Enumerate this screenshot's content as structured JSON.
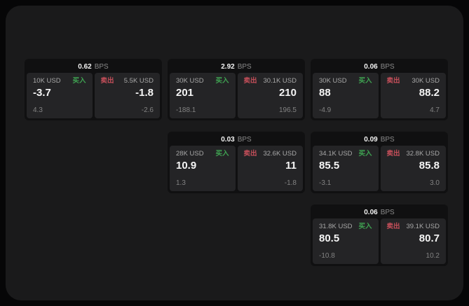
{
  "colors": {
    "page_background": "#060607",
    "panel_background": "#1a1a1b",
    "card_background": "#101011",
    "tile_background": "#242426",
    "buy_green": "#3fa352",
    "sell_red": "#c64f5a",
    "value_white": "#f5f5f5",
    "muted_gray": "#a8a8a8",
    "sub_gray": "#828282"
  },
  "labels": {
    "bps_unit": "BPS",
    "buy": "买入",
    "sell": "卖出"
  },
  "cards": [
    {
      "bps": "0.62",
      "buy": {
        "amount": "10K USD",
        "value": "-3.7",
        "sub": "4.3"
      },
      "sell": {
        "amount": "5.5K USD",
        "value": "-1.8",
        "sub": "-2.6"
      }
    },
    {
      "bps": "2.92",
      "buy": {
        "amount": "30K USD",
        "value": "201",
        "sub": "-188.1"
      },
      "sell": {
        "amount": "30.1K USD",
        "value": "210",
        "sub": "196.5"
      }
    },
    {
      "bps": "0.06",
      "buy": {
        "amount": "30K USD",
        "value": "88",
        "sub": "-4.9"
      },
      "sell": {
        "amount": "30K USD",
        "value": "88.2",
        "sub": "4.7"
      }
    },
    {
      "bps": "0.03",
      "buy": {
        "amount": "28K USD",
        "value": "10.9",
        "sub": "1.3"
      },
      "sell": {
        "amount": "32.6K USD",
        "value": "11",
        "sub": "-1.8"
      }
    },
    {
      "bps": "0.09",
      "buy": {
        "amount": "34.1K USD",
        "value": "85.5",
        "sub": "-3.1"
      },
      "sell": {
        "amount": "32.8K USD",
        "value": "85.8",
        "sub": "3.0"
      }
    },
    {
      "bps": "0.06",
      "buy": {
        "amount": "31.8K USD",
        "value": "80.5",
        "sub": "-10.8"
      },
      "sell": {
        "amount": "39.1K USD",
        "value": "80.7",
        "sub": "10.2"
      }
    }
  ]
}
